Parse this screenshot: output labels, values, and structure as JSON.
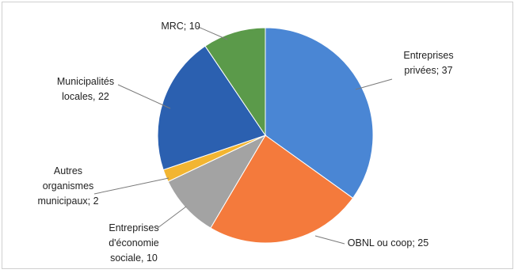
{
  "chart_data": {
    "type": "pie",
    "title": "",
    "slices": [
      {
        "label": "Entreprises privées",
        "value": 37,
        "color": "#4a86d4",
        "label_lines": [
          "Entreprises",
          "privées; 37"
        ]
      },
      {
        "label": "OBNL ou coop",
        "value": 25,
        "color": "#f47a3c",
        "label_lines": [
          "OBNL ou coop; 25"
        ]
      },
      {
        "label": "Entreprises d'économie sociale",
        "value": 10,
        "color": "#a3a3a3",
        "label_lines": [
          "Entreprises",
          "d'économie",
          "sociale, 10"
        ]
      },
      {
        "label": "Autres organismes municipaux",
        "value": 2,
        "color": "#f2b531",
        "label_lines": [
          "Autres",
          "organismes",
          "municipaux; 2"
        ]
      },
      {
        "label": "Municipalités locales",
        "value": 22,
        "color": "#2b60b0",
        "label_lines": [
          "Municipalités",
          "locales, 22"
        ]
      },
      {
        "label": "MRC",
        "value": 10,
        "color": "#5b9a4a",
        "label_lines": [
          "MRC; 10"
        ]
      }
    ]
  }
}
